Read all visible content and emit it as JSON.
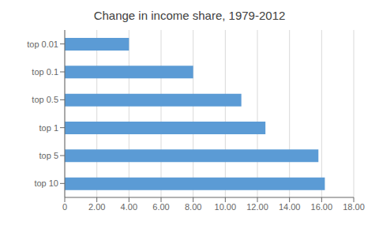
{
  "chart_data": {
    "type": "bar",
    "orientation": "horizontal",
    "title": "Change in income share, 1979-2012",
    "categories": [
      "top 0.01",
      "top 0.1",
      "top 0.5",
      "top 1",
      "top 5",
      "top 10"
    ],
    "values": [
      4.0,
      8.0,
      11.0,
      12.5,
      15.8,
      16.2
    ],
    "color": "#5b9bd5",
    "xlim": [
      0,
      18
    ],
    "xticks": [
      0,
      {
        "value": 2,
        "label": "2.00"
      },
      {
        "value": 4,
        "label": "4.00"
      },
      {
        "value": 6,
        "label": "6.00"
      },
      {
        "value": 8,
        "label": "8.00"
      },
      {
        "value": 10,
        "label": "10.00"
      },
      {
        "value": 12,
        "label": "12.00"
      },
      {
        "value": 14,
        "label": "14.00"
      },
      {
        "value": 16,
        "label": "16.00"
      },
      {
        "value": 18,
        "label": "18.00"
      }
    ],
    "grid": true
  }
}
